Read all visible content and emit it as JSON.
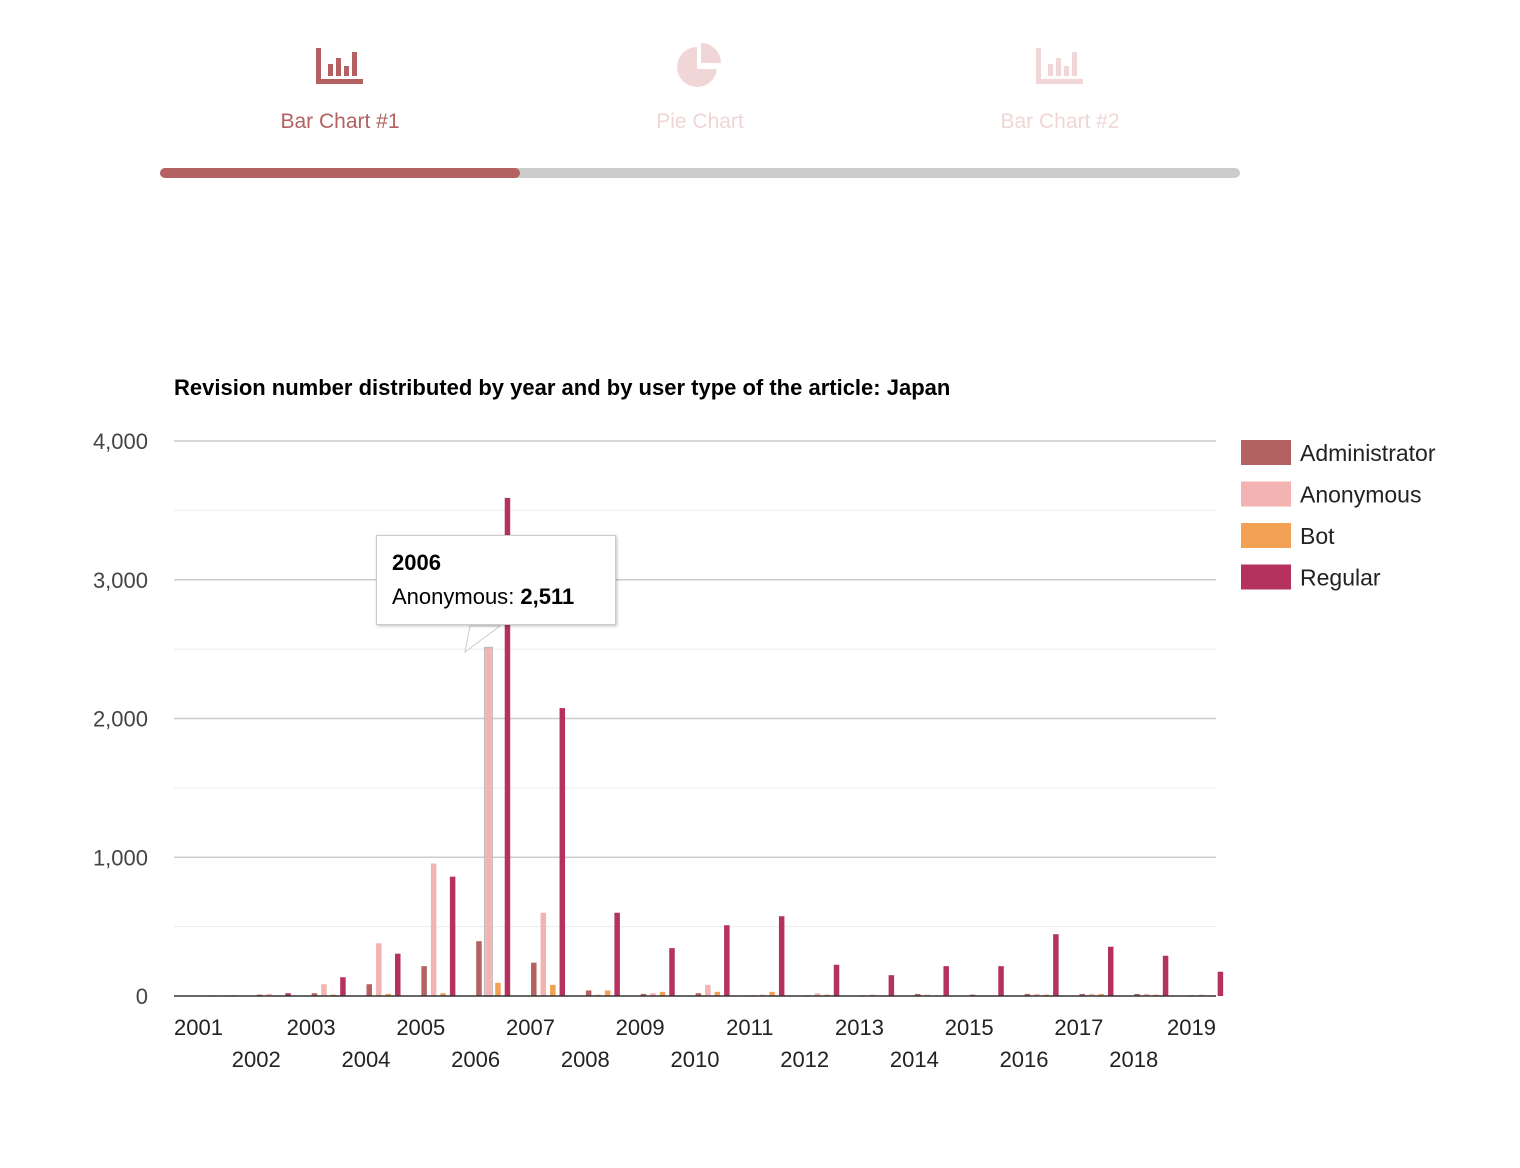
{
  "tabs": [
    {
      "label": "Bar Chart #1",
      "icon": "bar-chart-icon",
      "active": true
    },
    {
      "label": "Pie Chart",
      "icon": "pie-chart-icon",
      "active": false
    },
    {
      "label": "Bar Chart #2",
      "icon": "bar-chart-icon",
      "active": false
    }
  ],
  "progress": {
    "fraction": 0.3333
  },
  "colors": {
    "accent": "#b36161",
    "inactive_tab": "#f0d6d6",
    "track": "#cccccc"
  },
  "tooltip": {
    "title": "2006",
    "series": "Anonymous",
    "value": "2,511"
  },
  "chart_data": {
    "type": "bar",
    "title": "Revision number distributed by year and by user type of the article: Japan",
    "xlabel": "",
    "ylabel": "",
    "ylim": [
      0,
      4000
    ],
    "yticks": [
      0,
      1000,
      2000,
      3000,
      4000
    ],
    "ytick_labels": [
      "0",
      "1,000",
      "2,000",
      "3,000",
      "4,000"
    ],
    "grid": true,
    "legend_position": "right",
    "categories": [
      "2001",
      "2002",
      "2003",
      "2004",
      "2005",
      "2006",
      "2007",
      "2008",
      "2009",
      "2010",
      "2011",
      "2012",
      "2013",
      "2014",
      "2015",
      "2016",
      "2017",
      "2018",
      "2019"
    ],
    "series": [
      {
        "name": "Administrator",
        "color": "#b36161",
        "values": [
          0,
          10,
          20,
          85,
          215,
          395,
          240,
          40,
          15,
          20,
          5,
          5,
          5,
          15,
          10,
          15,
          15,
          15,
          5
        ]
      },
      {
        "name": "Anonymous",
        "color": "#f4b3b3",
        "values": [
          5,
          15,
          85,
          380,
          955,
          2511,
          600,
          10,
          20,
          80,
          10,
          20,
          10,
          10,
          5,
          15,
          15,
          15,
          10
        ]
      },
      {
        "name": "Bot",
        "color": "#f2a154",
        "values": [
          0,
          5,
          10,
          15,
          20,
          95,
          80,
          40,
          30,
          30,
          30,
          10,
          5,
          5,
          5,
          10,
          15,
          10,
          5
        ]
      },
      {
        "name": "Regular",
        "color": "#b5325e",
        "values": [
          5,
          20,
          135,
          305,
          860,
          3590,
          2075,
          600,
          345,
          510,
          575,
          225,
          150,
          215,
          215,
          445,
          355,
          290,
          175
        ]
      }
    ]
  }
}
